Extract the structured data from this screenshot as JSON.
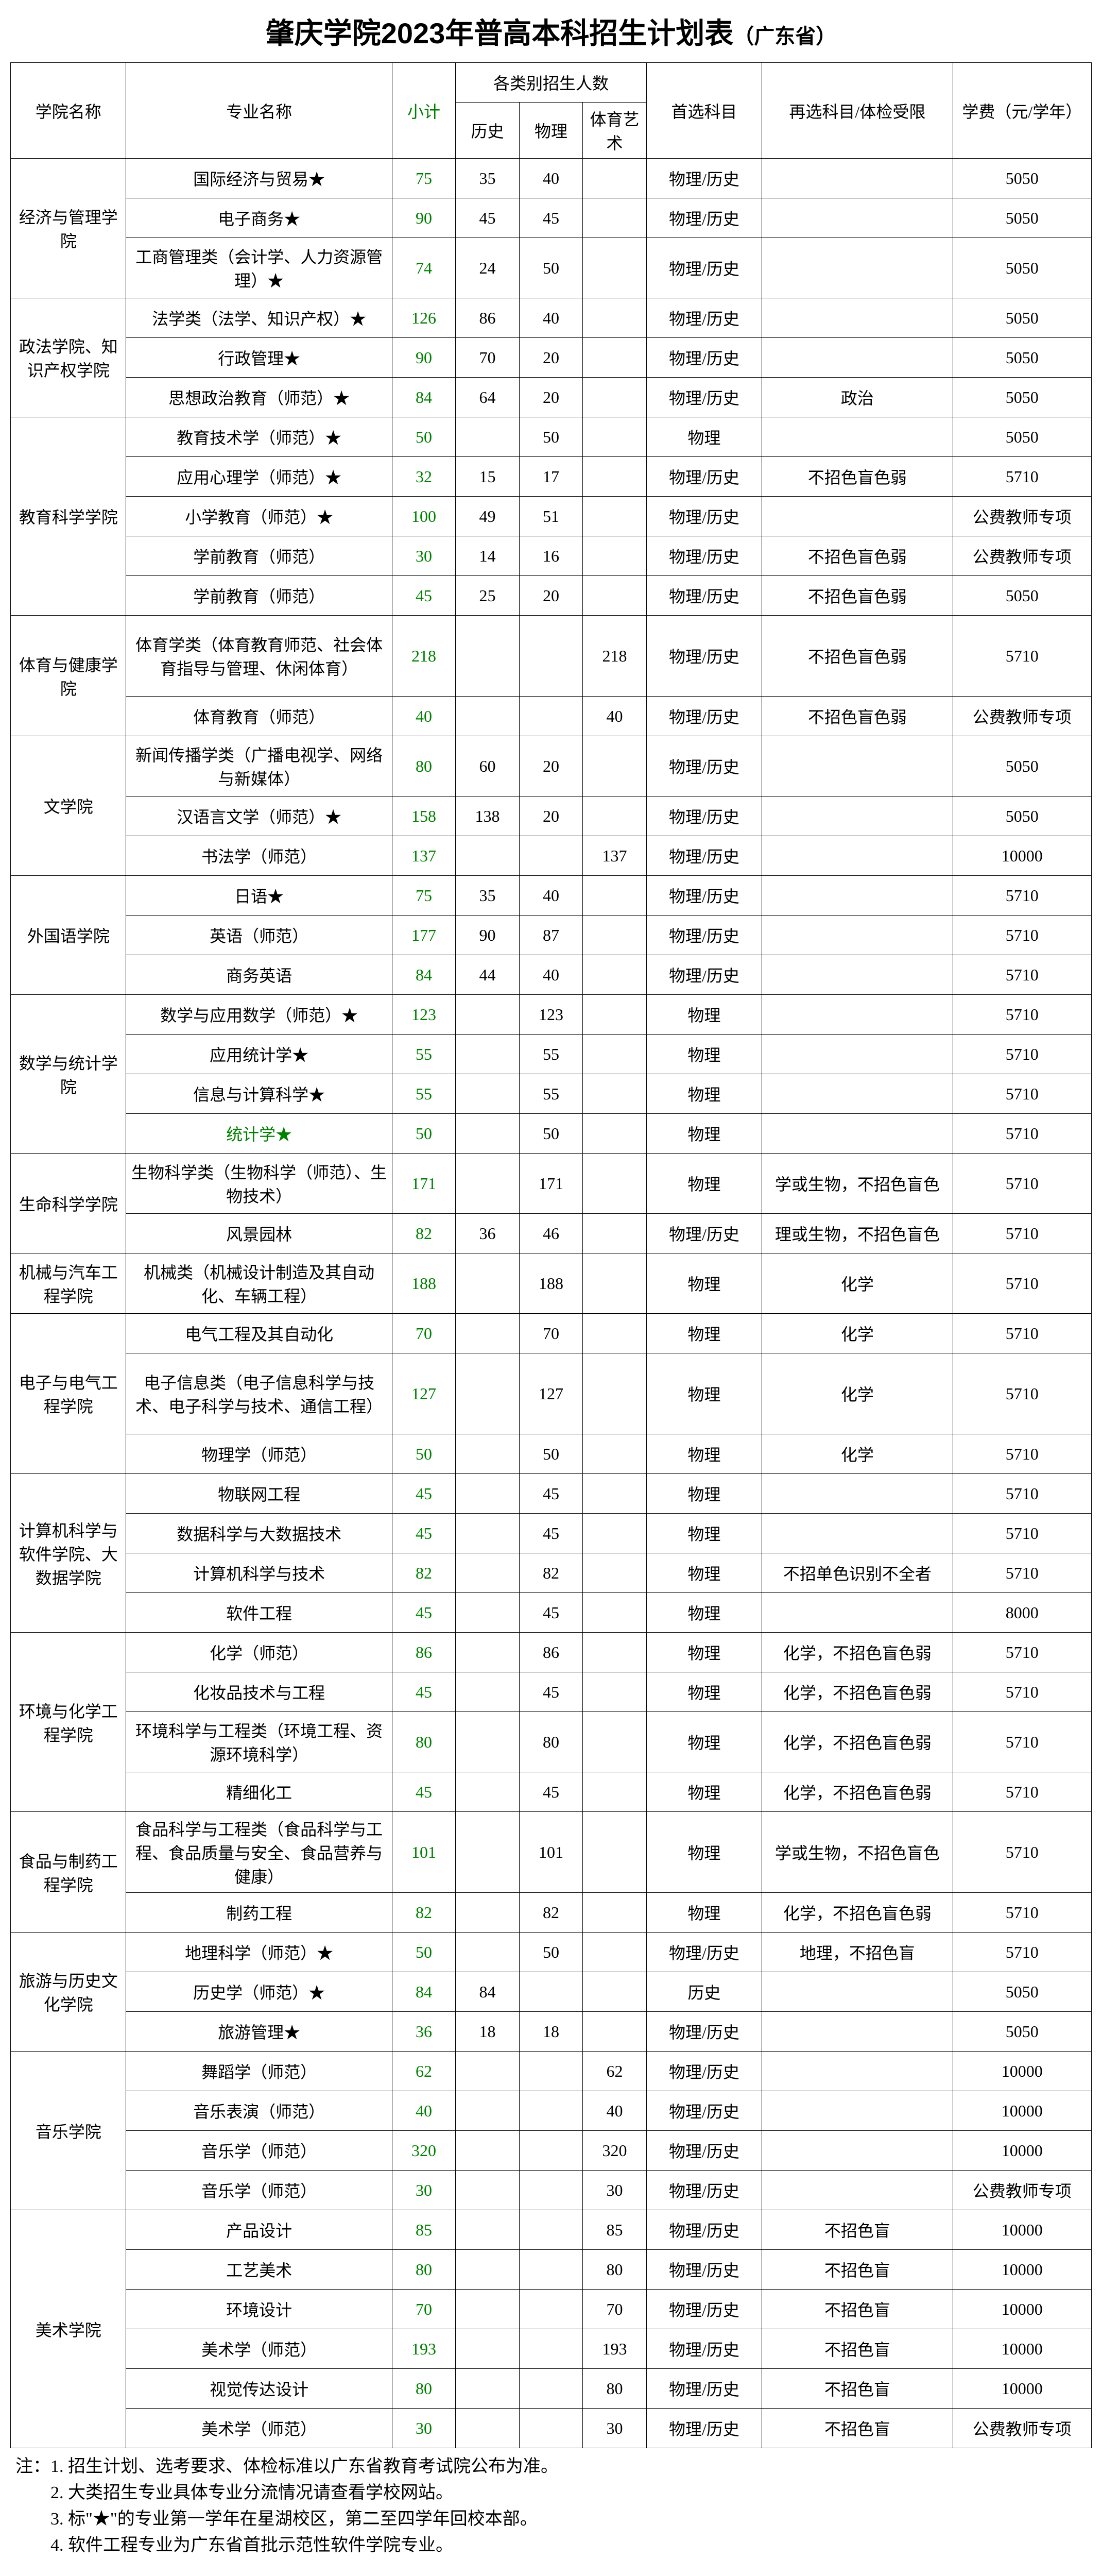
{
  "title_main": "肇庆学院2023年普高本科招生计划表",
  "title_sub": "（广东省）",
  "headers": {
    "college": "学院名称",
    "major": "专业名称",
    "subtotal": "小计",
    "categories": "各类别招生人数",
    "history": "历史",
    "physics": "物理",
    "art": "体育艺术",
    "first_subject": "首选科目",
    "limit": "再选科目/体检受限",
    "fee": "学费（元/学年）"
  },
  "colleges": [
    {
      "name": "经济与管理学院",
      "rows": [
        {
          "major": "国际经济与贸易★",
          "subtotal": "75",
          "history": "35",
          "physics": "40",
          "art": "",
          "first": "物理/历史",
          "limit": "",
          "fee": "5050"
        },
        {
          "major": "电子商务★",
          "subtotal": "90",
          "history": "45",
          "physics": "45",
          "art": "",
          "first": "物理/历史",
          "limit": "",
          "fee": "5050"
        },
        {
          "major": "工商管理类（会计学、人力资源管理）★",
          "subtotal": "74",
          "history": "24",
          "physics": "50",
          "art": "",
          "first": "物理/历史",
          "limit": "",
          "fee": "5050",
          "tall": true
        }
      ]
    },
    {
      "name": "政法学院、知识产权学院",
      "rows": [
        {
          "major": "法学类（法学、知识产权）★",
          "subtotal": "126",
          "history": "86",
          "physics": "40",
          "art": "",
          "first": "物理/历史",
          "limit": "",
          "fee": "5050"
        },
        {
          "major": "行政管理★",
          "subtotal": "90",
          "history": "70",
          "physics": "20",
          "art": "",
          "first": "物理/历史",
          "limit": "",
          "fee": "5050"
        },
        {
          "major": "思想政治教育（师范）★",
          "subtotal": "84",
          "history": "64",
          "physics": "20",
          "art": "",
          "first": "物理/历史",
          "limit": "政治",
          "fee": "5050"
        }
      ]
    },
    {
      "name": "教育科学学院",
      "rows": [
        {
          "major": "教育技术学（师范）★",
          "subtotal": "50",
          "history": "",
          "physics": "50",
          "art": "",
          "first": "物理",
          "limit": "",
          "fee": "5050"
        },
        {
          "major": "应用心理学（师范）★",
          "subtotal": "32",
          "history": "15",
          "physics": "17",
          "art": "",
          "first": "物理/历史",
          "limit": "不招色盲色弱",
          "fee": "5710"
        },
        {
          "major": "小学教育（师范）★",
          "subtotal": "100",
          "history": "49",
          "physics": "51",
          "art": "",
          "first": "物理/历史",
          "limit": "",
          "fee": "公费教师专项"
        },
        {
          "major": "学前教育（师范）",
          "subtotal": "30",
          "history": "14",
          "physics": "16",
          "art": "",
          "first": "物理/历史",
          "limit": "不招色盲色弱",
          "fee": "公费教师专项"
        },
        {
          "major": "学前教育（师范）",
          "subtotal": "45",
          "history": "25",
          "physics": "20",
          "art": "",
          "first": "物理/历史",
          "limit": "不招色盲色弱",
          "fee": "5050"
        }
      ]
    },
    {
      "name": "体育与健康学院",
      "rows": [
        {
          "major": "体育学类（体育教育师范、社会体育指导与管理、休闲体育）",
          "subtotal": "218",
          "history": "",
          "physics": "",
          "art": "218",
          "first": "物理/历史",
          "limit": "不招色盲色弱",
          "fee": "5710",
          "taller": true
        },
        {
          "major": "体育教育（师范）",
          "subtotal": "40",
          "history": "",
          "physics": "",
          "art": "40",
          "first": "物理/历史",
          "limit": "不招色盲色弱",
          "fee": "公费教师专项"
        }
      ]
    },
    {
      "name": "文学院",
      "rows": [
        {
          "major": "新闻传播学类（广播电视学、网络与新媒体）",
          "subtotal": "80",
          "history": "60",
          "physics": "20",
          "art": "",
          "first": "物理/历史",
          "limit": "",
          "fee": "5050",
          "tall": true
        },
        {
          "major": "汉语言文学（师范）★",
          "subtotal": "158",
          "history": "138",
          "physics": "20",
          "art": "",
          "first": "物理/历史",
          "limit": "",
          "fee": "5050"
        },
        {
          "major": "书法学（师范）",
          "subtotal": "137",
          "history": "",
          "physics": "",
          "art": "137",
          "first": "物理/历史",
          "limit": "",
          "fee": "10000"
        }
      ]
    },
    {
      "name": "外国语学院",
      "rows": [
        {
          "major": "日语★",
          "subtotal": "75",
          "history": "35",
          "physics": "40",
          "art": "",
          "first": "物理/历史",
          "limit": "",
          "fee": "5710"
        },
        {
          "major": "英语（师范）",
          "subtotal": "177",
          "history": "90",
          "physics": "87",
          "art": "",
          "first": "物理/历史",
          "limit": "",
          "fee": "5710"
        },
        {
          "major": "商务英语",
          "subtotal": "84",
          "history": "44",
          "physics": "40",
          "art": "",
          "first": "物理/历史",
          "limit": "",
          "fee": "5710"
        }
      ]
    },
    {
      "name": "数学与统计学院",
      "rows": [
        {
          "major": "数学与应用数学（师范）★",
          "subtotal": "123",
          "history": "",
          "physics": "123",
          "art": "",
          "first": "物理",
          "limit": "",
          "fee": "5710"
        },
        {
          "major": "应用统计学★",
          "subtotal": "55",
          "history": "",
          "physics": "55",
          "art": "",
          "first": "物理",
          "limit": "",
          "fee": "5710"
        },
        {
          "major": "信息与计算科学★",
          "subtotal": "55",
          "history": "",
          "physics": "55",
          "art": "",
          "first": "物理",
          "limit": "",
          "fee": "5710"
        },
        {
          "major": "统计学★",
          "major_green": true,
          "subtotal": "50",
          "history": "",
          "physics": "50",
          "art": "",
          "first": "物理",
          "limit": "",
          "fee": "5710"
        }
      ]
    },
    {
      "name": "生命科学学院",
      "rows": [
        {
          "major": "生物科学类（生物科学（师范）、生物技术）",
          "subtotal": "171",
          "history": "",
          "physics": "171",
          "art": "",
          "first": "物理",
          "limit": "学或生物，不招色盲色",
          "fee": "5710",
          "tall": true
        },
        {
          "major": "风景园林",
          "subtotal": "82",
          "history": "36",
          "physics": "46",
          "art": "",
          "first": "物理/历史",
          "limit": "理或生物，不招色盲色",
          "fee": "5710"
        }
      ]
    },
    {
      "name": "机械与汽车工程学院",
      "rows": [
        {
          "major": "机械类（机械设计制造及其自动化、车辆工程）",
          "subtotal": "188",
          "history": "",
          "physics": "188",
          "art": "",
          "first": "物理",
          "limit": "化学",
          "fee": "5710",
          "tall": true
        }
      ]
    },
    {
      "name": "电子与电气工程学院",
      "rows": [
        {
          "major": "电气工程及其自动化",
          "subtotal": "70",
          "history": "",
          "physics": "70",
          "art": "",
          "first": "物理",
          "limit": "化学",
          "fee": "5710"
        },
        {
          "major": "电子信息类（电子信息科学与技术、电子科学与技术、通信工程）",
          "subtotal": "127",
          "history": "",
          "physics": "127",
          "art": "",
          "first": "物理",
          "limit": "化学",
          "fee": "5710",
          "taller": true
        },
        {
          "major": "物理学（师范）",
          "subtotal": "50",
          "history": "",
          "physics": "50",
          "art": "",
          "first": "物理",
          "limit": "化学",
          "fee": "5710"
        }
      ]
    },
    {
      "name": "计算机科学与软件学院、大数据学院",
      "rows": [
        {
          "major": "物联网工程",
          "subtotal": "45",
          "history": "",
          "physics": "45",
          "art": "",
          "first": "物理",
          "limit": "",
          "fee": "5710"
        },
        {
          "major": "数据科学与大数据技术",
          "subtotal": "45",
          "history": "",
          "physics": "45",
          "art": "",
          "first": "物理",
          "limit": "",
          "fee": "5710"
        },
        {
          "major": "计算机科学与技术",
          "subtotal": "82",
          "history": "",
          "physics": "82",
          "art": "",
          "first": "物理",
          "limit": "不招单色识别不全者",
          "fee": "5710"
        },
        {
          "major": "软件工程",
          "subtotal": "45",
          "history": "",
          "physics": "45",
          "art": "",
          "first": "物理",
          "limit": "",
          "fee": "8000"
        }
      ]
    },
    {
      "name": "环境与化学工程学院",
      "rows": [
        {
          "major": "化学（师范）",
          "subtotal": "86",
          "history": "",
          "physics": "86",
          "art": "",
          "first": "物理",
          "limit": "化学，不招色盲色弱",
          "fee": "5710"
        },
        {
          "major": "化妆品技术与工程",
          "subtotal": "45",
          "history": "",
          "physics": "45",
          "art": "",
          "first": "物理",
          "limit": "化学，不招色盲色弱",
          "fee": "5710"
        },
        {
          "major": "环境科学与工程类（环境工程、资源环境科学）",
          "subtotal": "80",
          "history": "",
          "physics": "80",
          "art": "",
          "first": "物理",
          "limit": "化学，不招色盲色弱",
          "fee": "5710",
          "tall": true
        },
        {
          "major": "精细化工",
          "subtotal": "45",
          "history": "",
          "physics": "45",
          "art": "",
          "first": "物理",
          "limit": "化学，不招色盲色弱",
          "fee": "5710"
        }
      ]
    },
    {
      "name": "食品与制药工程学院",
      "rows": [
        {
          "major": "食品科学与工程类（食品科学与工程、食品质量与安全、食品营养与健康）",
          "subtotal": "101",
          "history": "",
          "physics": "101",
          "art": "",
          "first": "物理",
          "limit": "学或生物，不招色盲色",
          "fee": "5710",
          "taller": true
        },
        {
          "major": "制药工程",
          "subtotal": "82",
          "history": "",
          "physics": "82",
          "art": "",
          "first": "物理",
          "limit": "化学，不招色盲色弱",
          "fee": "5710"
        }
      ]
    },
    {
      "name": "旅游与历史文化学院",
      "rows": [
        {
          "major": "地理科学（师范）★",
          "subtotal": "50",
          "history": "",
          "physics": "50",
          "art": "",
          "first": "物理/历史",
          "limit": "地理，不招色盲",
          "fee": "5710"
        },
        {
          "major": "历史学（师范）★",
          "subtotal": "84",
          "history": "84",
          "physics": "",
          "art": "",
          "first": "历史",
          "limit": "",
          "fee": "5050"
        },
        {
          "major": "旅游管理★",
          "subtotal": "36",
          "history": "18",
          "physics": "18",
          "art": "",
          "first": "物理/历史",
          "limit": "",
          "fee": "5050"
        }
      ]
    },
    {
      "name": "音乐学院",
      "rows": [
        {
          "major": "舞蹈学（师范）",
          "subtotal": "62",
          "history": "",
          "physics": "",
          "art": "62",
          "first": "物理/历史",
          "limit": "",
          "fee": "10000"
        },
        {
          "major": "音乐表演（师范）",
          "subtotal": "40",
          "history": "",
          "physics": "",
          "art": "40",
          "first": "物理/历史",
          "limit": "",
          "fee": "10000"
        },
        {
          "major": "音乐学（师范）",
          "subtotal": "320",
          "history": "",
          "physics": "",
          "art": "320",
          "first": "物理/历史",
          "limit": "",
          "fee": "10000"
        },
        {
          "major": "音乐学（师范）",
          "subtotal": "30",
          "history": "",
          "physics": "",
          "art": "30",
          "first": "物理/历史",
          "limit": "",
          "fee": "公费教师专项"
        }
      ]
    },
    {
      "name": "美术学院",
      "rows": [
        {
          "major": "产品设计",
          "subtotal": "85",
          "history": "",
          "physics": "",
          "art": "85",
          "first": "物理/历史",
          "limit": "不招色盲",
          "fee": "10000"
        },
        {
          "major": "工艺美术",
          "subtotal": "80",
          "history": "",
          "physics": "",
          "art": "80",
          "first": "物理/历史",
          "limit": "不招色盲",
          "fee": "10000"
        },
        {
          "major": "环境设计",
          "subtotal": "70",
          "history": "",
          "physics": "",
          "art": "70",
          "first": "物理/历史",
          "limit": "不招色盲",
          "fee": "10000"
        },
        {
          "major": "美术学（师范）",
          "subtotal": "193",
          "history": "",
          "physics": "",
          "art": "193",
          "first": "物理/历史",
          "limit": "不招色盲",
          "fee": "10000"
        },
        {
          "major": "视觉传达设计",
          "subtotal": "80",
          "history": "",
          "physics": "",
          "art": "80",
          "first": "物理/历史",
          "limit": "不招色盲",
          "fee": "10000"
        },
        {
          "major": "美术学（师范）",
          "subtotal": "30",
          "history": "",
          "physics": "",
          "art": "30",
          "first": "物理/历史",
          "limit": "不招色盲",
          "fee": "公费教师专项"
        }
      ]
    }
  ],
  "notes": [
    "注：1. 招生计划、选考要求、体检标准以广东省教育考试院公布为准。",
    "　　2. 大类招生专业具体专业分流情况请查看学校网站。",
    "　　3. 标\"★\"的专业第一学年在星湖校区，第二至四学年回校本部。",
    "　　4. 软件工程专业为广东省首批示范性软件学院专业。"
  ]
}
